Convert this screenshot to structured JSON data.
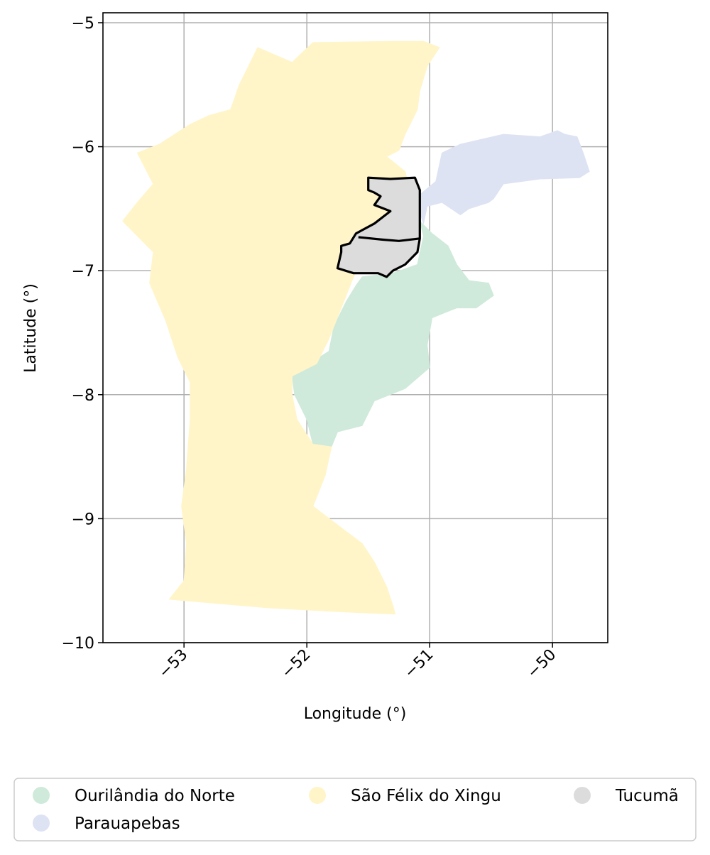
{
  "chart_data": {
    "type": "map",
    "xlabel": "Longitude (°)",
    "ylabel": "Latitude (°)",
    "xlim": [
      -53.66,
      -49.55
    ],
    "ylim": [
      -10.0,
      -4.92
    ],
    "xticks": [
      -53,
      -52,
      -51,
      -50
    ],
    "yticks": [
      -5,
      -6,
      -7,
      -8,
      -9,
      -10
    ],
    "xtick_labels": [
      "−53",
      "−52",
      "−51",
      "−50"
    ],
    "ytick_labels": [
      "−5",
      "−6",
      "−7",
      "−8",
      "−9",
      "−10"
    ],
    "grid": true,
    "legend_position": "bottom",
    "legend_columns": 3,
    "regions": [
      {
        "name": "Ourilândia do Norte",
        "color": "#cfeadb",
        "outlined": false,
        "polygon": [
          [
            -51.55,
            -7.05
          ],
          [
            -51.3,
            -7.02
          ],
          [
            -51.1,
            -6.95
          ],
          [
            -51.05,
            -6.72
          ],
          [
            -51.08,
            -6.6
          ],
          [
            -50.98,
            -6.7
          ],
          [
            -50.85,
            -6.8
          ],
          [
            -50.78,
            -6.95
          ],
          [
            -50.68,
            -7.08
          ],
          [
            -50.52,
            -7.1
          ],
          [
            -50.48,
            -7.2
          ],
          [
            -50.62,
            -7.3
          ],
          [
            -50.78,
            -7.3
          ],
          [
            -50.98,
            -7.38
          ],
          [
            -51.02,
            -7.6
          ],
          [
            -51.0,
            -7.78
          ],
          [
            -51.2,
            -7.95
          ],
          [
            -51.45,
            -8.05
          ],
          [
            -51.55,
            -8.25
          ],
          [
            -51.75,
            -8.3
          ],
          [
            -51.8,
            -8.42
          ],
          [
            -51.95,
            -8.4
          ],
          [
            -52.0,
            -8.2
          ],
          [
            -52.1,
            -8.0
          ],
          [
            -52.12,
            -7.85
          ],
          [
            -51.98,
            -7.75
          ],
          [
            -51.82,
            -7.65
          ],
          [
            -51.78,
            -7.45
          ],
          [
            -51.68,
            -7.25
          ],
          [
            -51.6,
            -7.12
          ]
        ]
      },
      {
        "name": "Parauapebas",
        "color": "#dde3f2",
        "outlined": false,
        "polygon": [
          [
            -51.12,
            -6.42
          ],
          [
            -50.95,
            -6.28
          ],
          [
            -50.9,
            -6.05
          ],
          [
            -50.75,
            -5.98
          ],
          [
            -50.4,
            -5.9
          ],
          [
            -50.1,
            -5.92
          ],
          [
            -49.96,
            -5.87
          ],
          [
            -49.9,
            -5.9
          ],
          [
            -49.8,
            -5.92
          ],
          [
            -49.75,
            -6.05
          ],
          [
            -49.7,
            -6.2
          ],
          [
            -49.78,
            -6.25
          ],
          [
            -50.1,
            -6.26
          ],
          [
            -50.4,
            -6.3
          ],
          [
            -50.48,
            -6.42
          ],
          [
            -50.52,
            -6.45
          ],
          [
            -50.68,
            -6.5
          ],
          [
            -50.75,
            -6.55
          ],
          [
            -50.9,
            -6.45
          ],
          [
            -51.02,
            -6.48
          ],
          [
            -51.05,
            -6.62
          ]
        ]
      },
      {
        "name": "São Félix do Xingu",
        "color": "#fff5c8",
        "outlined": false,
        "polygon": [
          [
            -51.95,
            -5.16
          ],
          [
            -51.3,
            -5.15
          ],
          [
            -51.05,
            -5.15
          ],
          [
            -50.92,
            -5.2
          ],
          [
            -51.02,
            -5.35
          ],
          [
            -51.08,
            -5.55
          ],
          [
            -51.1,
            -5.7
          ],
          [
            -51.2,
            -5.9
          ],
          [
            -51.25,
            -6.03
          ],
          [
            -51.35,
            -6.08
          ],
          [
            -51.2,
            -6.2
          ],
          [
            -51.15,
            -6.4
          ],
          [
            -51.12,
            -6.6
          ],
          [
            -51.35,
            -6.72
          ],
          [
            -51.5,
            -6.85
          ],
          [
            -51.62,
            -7.05
          ],
          [
            -51.72,
            -7.3
          ],
          [
            -51.82,
            -7.55
          ],
          [
            -51.92,
            -7.75
          ],
          [
            -52.12,
            -7.85
          ],
          [
            -52.12,
            -8.0
          ],
          [
            -52.08,
            -8.2
          ],
          [
            -51.95,
            -8.4
          ],
          [
            -51.8,
            -8.42
          ],
          [
            -51.85,
            -8.65
          ],
          [
            -51.95,
            -8.9
          ],
          [
            -51.75,
            -9.05
          ],
          [
            -51.55,
            -9.2
          ],
          [
            -51.45,
            -9.35
          ],
          [
            -51.35,
            -9.55
          ],
          [
            -51.3,
            -9.7
          ],
          [
            -51.28,
            -9.77
          ],
          [
            -51.75,
            -9.75
          ],
          [
            -52.3,
            -9.72
          ],
          [
            -53.12,
            -9.65
          ],
          [
            -53.0,
            -9.5
          ],
          [
            -52.98,
            -9.2
          ],
          [
            -53.02,
            -8.9
          ],
          [
            -52.98,
            -8.6
          ],
          [
            -52.95,
            -8.2
          ],
          [
            -52.95,
            -7.9
          ],
          [
            -53.05,
            -7.7
          ],
          [
            -53.15,
            -7.4
          ],
          [
            -53.28,
            -7.1
          ],
          [
            -53.25,
            -6.85
          ],
          [
            -53.4,
            -6.7
          ],
          [
            -53.5,
            -6.6
          ],
          [
            -53.38,
            -6.45
          ],
          [
            -53.25,
            -6.3
          ],
          [
            -53.38,
            -6.05
          ],
          [
            -53.2,
            -5.98
          ],
          [
            -52.95,
            -5.82
          ],
          [
            -52.8,
            -5.75
          ],
          [
            -52.62,
            -5.7
          ],
          [
            -52.55,
            -5.5
          ],
          [
            -52.4,
            -5.2
          ],
          [
            -52.12,
            -5.32
          ]
        ]
      },
      {
        "name": "Tucumã",
        "color": "#dcdcdc",
        "outlined": true,
        "polygon": [
          [
            -51.5,
            -6.25
          ],
          [
            -51.32,
            -6.26
          ],
          [
            -51.12,
            -6.25
          ],
          [
            -51.08,
            -6.35
          ],
          [
            -51.08,
            -6.6
          ],
          [
            -51.08,
            -6.74
          ],
          [
            -51.1,
            -6.85
          ],
          [
            -51.2,
            -6.95
          ],
          [
            -51.3,
            -7.0
          ],
          [
            -51.35,
            -7.05
          ],
          [
            -51.42,
            -7.02
          ],
          [
            -51.62,
            -7.02
          ],
          [
            -51.75,
            -6.98
          ],
          [
            -51.72,
            -6.85
          ],
          [
            -51.72,
            -6.8
          ],
          [
            -51.65,
            -6.78
          ],
          [
            -51.6,
            -6.7
          ],
          [
            -51.45,
            -6.62
          ],
          [
            -51.32,
            -6.52
          ],
          [
            -51.45,
            -6.47
          ],
          [
            -51.4,
            -6.4
          ],
          [
            -51.45,
            -6.37
          ],
          [
            -51.5,
            -6.35
          ]
        ]
      },
      {
        "name": "Tucumã divider",
        "color": "none",
        "outlined": true,
        "line_only": true,
        "polygon": [
          [
            -51.58,
            -6.73
          ],
          [
            -51.38,
            -6.75
          ],
          [
            -51.25,
            -6.76
          ],
          [
            -51.08,
            -6.74
          ]
        ]
      }
    ],
    "legend": [
      {
        "label": "Ourilândia do Norte",
        "color": "#cfeadb"
      },
      {
        "label": "Parauapebas",
        "color": "#dde3f2"
      },
      {
        "label": "São Félix do Xingu",
        "color": "#fff5c8"
      },
      {
        "label": "Tucumã",
        "color": "#dcdcdc"
      }
    ]
  }
}
